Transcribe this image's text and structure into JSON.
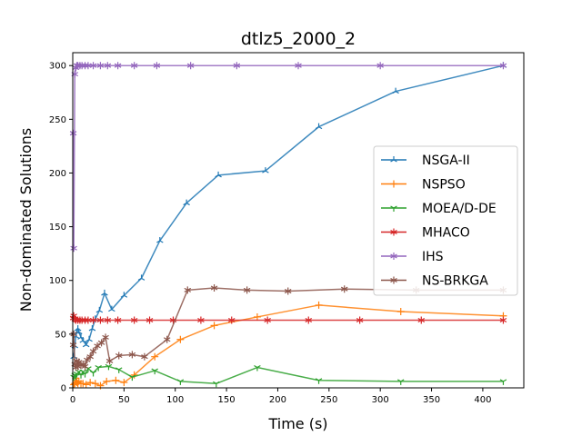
{
  "chart_data": {
    "type": "line",
    "title": "dtlz5_2000_2",
    "xlabel": "Time (s)",
    "ylabel": "Non-dominated Solutions",
    "xlim": [
      0,
      440
    ],
    "ylim": [
      0,
      312
    ],
    "xticks": [
      0,
      50,
      100,
      150,
      200,
      250,
      300,
      350,
      400
    ],
    "yticks": [
      0,
      50,
      100,
      150,
      200,
      250,
      300
    ],
    "legend_position": "center-right",
    "grid": false,
    "series": [
      {
        "name": "NSGA-II",
        "color": "#1f77b4",
        "marker": "tri-up",
        "points": [
          [
            1,
            29
          ],
          [
            2,
            39
          ],
          [
            3,
            48
          ],
          [
            4,
            52
          ],
          [
            5,
            55
          ],
          [
            6,
            52
          ],
          [
            8,
            47
          ],
          [
            10,
            44
          ],
          [
            13,
            40
          ],
          [
            16,
            45
          ],
          [
            19,
            55
          ],
          [
            22,
            64
          ],
          [
            26,
            72
          ],
          [
            31,
            88
          ],
          [
            38,
            73
          ],
          [
            50,
            86
          ],
          [
            67,
            102
          ],
          [
            85,
            137
          ],
          [
            111,
            172
          ],
          [
            142,
            198
          ],
          [
            188,
            202
          ],
          [
            240,
            243
          ],
          [
            315,
            276
          ],
          [
            420,
            300
          ]
        ]
      },
      {
        "name": "NSPSO",
        "color": "#ff7f0e",
        "marker": "plus",
        "points": [
          [
            1,
            3
          ],
          [
            2,
            4
          ],
          [
            3,
            9
          ],
          [
            4,
            5
          ],
          [
            5,
            4
          ],
          [
            6,
            6
          ],
          [
            8,
            4
          ],
          [
            10,
            4
          ],
          [
            13,
            3
          ],
          [
            17,
            5
          ],
          [
            22,
            4
          ],
          [
            27,
            2
          ],
          [
            33,
            6
          ],
          [
            42,
            7
          ],
          [
            50,
            5
          ],
          [
            60,
            12
          ],
          [
            80,
            29
          ],
          [
            105,
            45
          ],
          [
            138,
            58
          ],
          [
            180,
            66
          ],
          [
            240,
            77
          ],
          [
            320,
            71
          ],
          [
            420,
            67
          ]
        ]
      },
      {
        "name": "MOEA/D-DE",
        "color": "#2ca02c",
        "marker": "tri-down",
        "points": [
          [
            1,
            10
          ],
          [
            2,
            12
          ],
          [
            3,
            11
          ],
          [
            4,
            13
          ],
          [
            6,
            15
          ],
          [
            8,
            12
          ],
          [
            10,
            15
          ],
          [
            12,
            13
          ],
          [
            15,
            18
          ],
          [
            20,
            14
          ],
          [
            25,
            19
          ],
          [
            35,
            20
          ],
          [
            45,
            17
          ],
          [
            58,
            10
          ],
          [
            80,
            16
          ],
          [
            105,
            6
          ],
          [
            140,
            4
          ],
          [
            180,
            19
          ],
          [
            240,
            7
          ],
          [
            320,
            6
          ],
          [
            420,
            6
          ]
        ]
      },
      {
        "name": "MHACO",
        "color": "#d62728",
        "marker": "star",
        "points": [
          [
            0.5,
            65
          ],
          [
            1,
            67
          ],
          [
            2,
            64
          ],
          [
            3,
            63
          ],
          [
            5,
            63
          ],
          [
            7,
            63
          ],
          [
            9,
            63
          ],
          [
            12,
            63
          ],
          [
            15,
            63
          ],
          [
            20,
            63
          ],
          [
            27,
            63
          ],
          [
            34,
            63
          ],
          [
            44,
            63
          ],
          [
            60,
            63
          ],
          [
            75,
            63
          ],
          [
            98,
            63
          ],
          [
            125,
            63
          ],
          [
            155,
            63
          ],
          [
            190,
            63
          ],
          [
            230,
            63
          ],
          [
            280,
            63
          ],
          [
            340,
            63
          ],
          [
            420,
            63
          ]
        ]
      },
      {
        "name": "IHS",
        "color": "#9467bd",
        "marker": "star",
        "points": [
          [
            0.5,
            237
          ],
          [
            1,
            130
          ],
          [
            2,
            292
          ],
          [
            3,
            298
          ],
          [
            4,
            300
          ],
          [
            5,
            300
          ],
          [
            7,
            300
          ],
          [
            9,
            300
          ],
          [
            12,
            300
          ],
          [
            15,
            300
          ],
          [
            20,
            300
          ],
          [
            27,
            300
          ],
          [
            34,
            300
          ],
          [
            44,
            300
          ],
          [
            60,
            300
          ],
          [
            82,
            300
          ],
          [
            115,
            300
          ],
          [
            160,
            300
          ],
          [
            220,
            300
          ],
          [
            300,
            300
          ],
          [
            420,
            300
          ]
        ]
      },
      {
        "name": "NS-BRKGA",
        "color": "#8c564b",
        "marker": "star",
        "points": [
          [
            0.5,
            40
          ],
          [
            1,
            50
          ],
          [
            2,
            22
          ],
          [
            3,
            19
          ],
          [
            4,
            25
          ],
          [
            5,
            20
          ],
          [
            6,
            24
          ],
          [
            8,
            21
          ],
          [
            10,
            22
          ],
          [
            12,
            20
          ],
          [
            14,
            26
          ],
          [
            17,
            29
          ],
          [
            20,
            34
          ],
          [
            24,
            39
          ],
          [
            28,
            42
          ],
          [
            32,
            47
          ],
          [
            36,
            25
          ],
          [
            45,
            30
          ],
          [
            58,
            31
          ],
          [
            70,
            29
          ],
          [
            92,
            45
          ],
          [
            112,
            91
          ],
          [
            138,
            93
          ],
          [
            170,
            91
          ],
          [
            210,
            90
          ],
          [
            265,
            92
          ],
          [
            335,
            91
          ],
          [
            420,
            91
          ]
        ]
      }
    ]
  }
}
